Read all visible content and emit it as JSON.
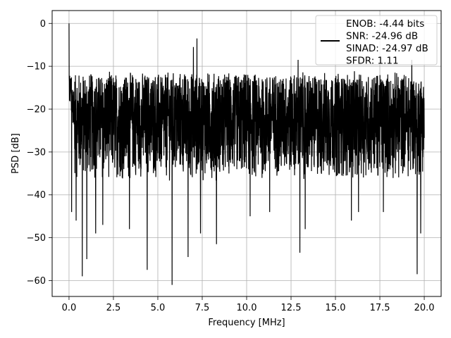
{
  "chart_data": {
    "type": "line",
    "title": "",
    "xlabel": "Frequency [MHz]",
    "ylabel": "PSD [dB]",
    "xlim": [
      -0.95,
      20.95
    ],
    "ylim": [
      -63.7,
      3.0
    ],
    "xticks": [
      0.0,
      2.5,
      5.0,
      7.5,
      10.0,
      12.5,
      15.0,
      17.5,
      20.0
    ],
    "xtick_labels": [
      "0.0",
      "2.5",
      "5.0",
      "7.5",
      "10.0",
      "12.5",
      "15.0",
      "17.5",
      "20.0"
    ],
    "yticks": [
      0,
      -10,
      -20,
      -30,
      -40,
      -50,
      -60
    ],
    "ytick_labels": [
      "0",
      "−10",
      "−20",
      "−30",
      "−40",
      "−50",
      "−60"
    ],
    "grid": true,
    "legend_position": "top-right",
    "series": [
      {
        "name": "ENOB: -4.44 bits\nSNR: -24.96 dB\nSINAD: -24.97 dB\nSFDR: 1.11",
        "color": "#000000",
        "x_range": [
          0.0,
          20.0
        ],
        "band": {
          "upper_typical": -12,
          "lower_typical": -36,
          "median": -22
        },
        "peaks": [
          {
            "x": 0.0,
            "y": 0.0
          },
          {
            "x": 7.2,
            "y": -3.5
          },
          {
            "x": 7.0,
            "y": -5.5
          },
          {
            "x": 12.9,
            "y": -8.5
          },
          {
            "x": 19.3,
            "y": -8.5
          }
        ],
        "dips": [
          {
            "x": 0.15,
            "y": -44
          },
          {
            "x": 0.4,
            "y": -46
          },
          {
            "x": 0.75,
            "y": -59
          },
          {
            "x": 1.0,
            "y": -55
          },
          {
            "x": 1.5,
            "y": -49
          },
          {
            "x": 1.9,
            "y": -47
          },
          {
            "x": 3.4,
            "y": -48
          },
          {
            "x": 4.4,
            "y": -57.5
          },
          {
            "x": 5.8,
            "y": -61
          },
          {
            "x": 6.7,
            "y": -54.5
          },
          {
            "x": 7.4,
            "y": -49
          },
          {
            "x": 8.3,
            "y": -51.5
          },
          {
            "x": 10.2,
            "y": -45
          },
          {
            "x": 11.3,
            "y": -44
          },
          {
            "x": 13.0,
            "y": -53.5
          },
          {
            "x": 13.3,
            "y": -48
          },
          {
            "x": 15.9,
            "y": -46
          },
          {
            "x": 16.3,
            "y": -44
          },
          {
            "x": 17.7,
            "y": -44
          },
          {
            "x": 19.6,
            "y": -58.5
          },
          {
            "x": 19.8,
            "y": -49
          }
        ]
      }
    ]
  }
}
